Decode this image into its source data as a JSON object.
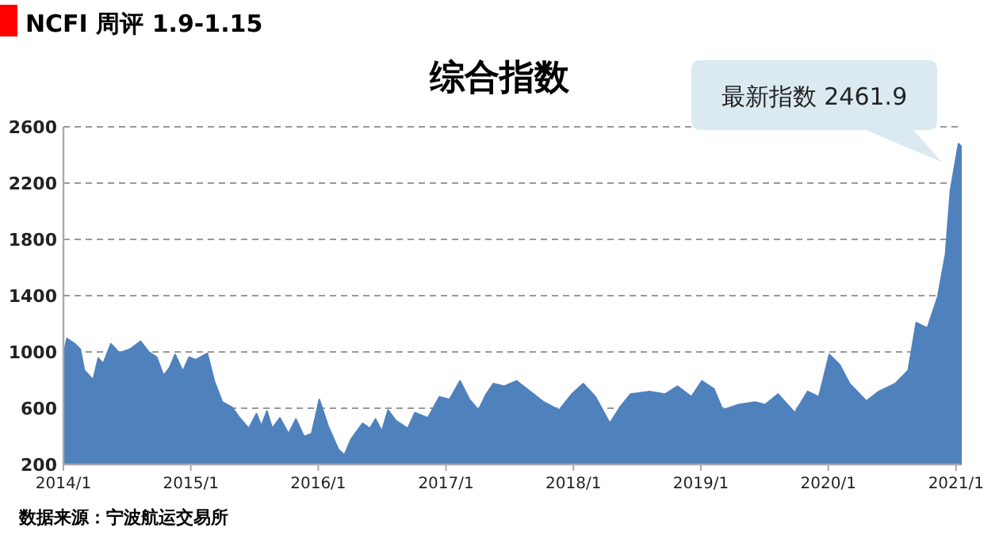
{
  "chart_data": {
    "type": "area",
    "title": "综合指数",
    "subtitle": "NCFI 周评 1.9-1.15",
    "x": [
      "2014-01-03",
      "2014-01-11",
      "2014-02-03",
      "2014-02-18",
      "2014-03-02",
      "2014-03-27",
      "2014-04-11",
      "2014-04-25",
      "2014-05-17",
      "2014-06-10",
      "2014-07-11",
      "2014-08-10",
      "2014-09-02",
      "2014-09-25",
      "2014-10-15",
      "2014-11-01",
      "2014-11-17",
      "2014-12-09",
      "2014-12-27",
      "2015-01-15",
      "2015-02-17",
      "2015-03-09",
      "2015-04-01",
      "2015-04-29",
      "2015-05-21",
      "2015-06-16",
      "2015-07-08",
      "2015-07-22",
      "2015-08-07",
      "2015-08-22",
      "2015-09-13",
      "2015-10-08",
      "2015-10-29",
      "2015-11-21",
      "2015-12-13",
      "2016-01-04",
      "2016-01-29",
      "2016-02-28",
      "2016-03-16",
      "2016-04-04",
      "2016-05-07",
      "2016-05-28",
      "2016-06-13",
      "2016-07-01",
      "2016-07-19",
      "2016-08-10",
      "2016-09-13",
      "2016-10-04",
      "2016-11-10",
      "2016-12-13",
      "2017-01-11",
      "2017-02-10",
      "2017-03-09",
      "2017-04-04",
      "2017-04-26",
      "2017-05-17",
      "2017-06-16",
      "2017-07-22",
      "2017-10-08",
      "2017-11-21",
      "2017-12-27",
      "2018-01-29",
      "2018-03-05",
      "2018-04-15",
      "2018-05-14",
      "2018-06-13",
      "2018-08-07",
      "2018-09-20",
      "2018-10-26",
      "2018-12-05",
      "2019-01-04",
      "2019-02-07",
      "2019-03-05",
      "2019-04-19",
      "2019-06-05",
      "2019-07-04",
      "2019-08-10",
      "2019-09-27",
      "2019-11-03",
      "2019-12-05",
      "2020-01-04",
      "2020-02-03",
      "2020-03-02",
      "2020-04-19",
      "2020-05-25",
      "2020-07-11",
      "2020-08-17",
      "2020-09-09",
      "2020-10-11",
      "2020-11-10",
      "2020-12-02",
      "2020-12-16",
      "2021-01-08",
      "2021-01-15"
    ],
    "values": [
      1001,
      1095,
      1057,
      1020,
      869,
      802,
      956,
      918,
      1057,
      993,
      1020,
      1076,
      1001,
      963,
      832,
      888,
      982,
      862,
      963,
      944,
      990,
      794,
      644,
      606,
      531,
      456,
      561,
      474,
      580,
      456,
      531,
      418,
      523,
      399,
      418,
      662,
      474,
      305,
      268,
      380,
      493,
      456,
      523,
      437,
      587,
      512,
      456,
      568,
      531,
      681,
      662,
      794,
      662,
      587,
      700,
      775,
      756,
      794,
      644,
      587,
      700,
      775,
      681,
      493,
      606,
      700,
      719,
      700,
      756,
      681,
      794,
      738,
      587,
      625,
      644,
      625,
      700,
      568,
      719,
      681,
      982,
      907,
      775,
      651,
      719,
      775,
      869,
      1208,
      1170,
      1396,
      1696,
      2148,
      2480,
      2461.9
    ],
    "color": "#4f81bd",
    "xlim": [
      "2014-01-01",
      "2021-01-15"
    ],
    "xticks": [
      {
        "value": "2014-01-01",
        "label": "2014/1"
      },
      {
        "value": "2015-01-01",
        "label": "2015/1"
      },
      {
        "value": "2016-01-01",
        "label": "2016/1"
      },
      {
        "value": "2017-01-01",
        "label": "2017/1"
      },
      {
        "value": "2018-01-01",
        "label": "2018/1"
      },
      {
        "value": "2019-01-01",
        "label": "2019/1"
      },
      {
        "value": "2020-01-01",
        "label": "2020/1"
      },
      {
        "value": "2021-01-01",
        "label": "2021/1"
      }
    ],
    "ylim": [
      200,
      2600
    ],
    "yticks": [
      200,
      600,
      1000,
      1400,
      1800,
      2200,
      2600
    ],
    "grid": "y",
    "annotations": [
      {
        "text": "最新指数 2461.9",
        "x": "2021-01-15",
        "y": 2461.9
      },
      "数据来源：宁波航运交易所"
    ]
  }
}
